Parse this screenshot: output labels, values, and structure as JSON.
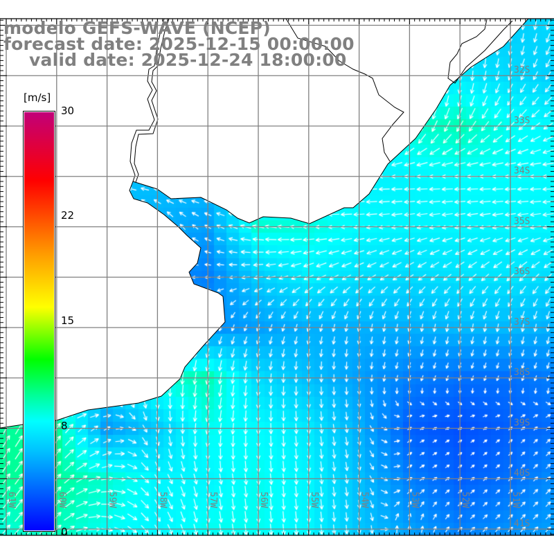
{
  "title": {
    "line1": "modelo GEFS-WAVE (NCEP)",
    "line2": "forecast date: 2025-12-15 00:00:00",
    "line3": "valid date: 2025-12-24 18:00:00"
  },
  "colorbar": {
    "unit": "[m/s]",
    "labels": [
      "30",
      "22",
      "15",
      "8",
      "0"
    ],
    "stops": [
      {
        "v": 0,
        "c": "#0000ff"
      },
      {
        "v": 3,
        "c": "#0060ff"
      },
      {
        "v": 6,
        "c": "#00c0ff"
      },
      {
        "v": 8.3,
        "c": "#00ffff"
      },
      {
        "v": 10,
        "c": "#00ff99"
      },
      {
        "v": 12.4,
        "c": "#00ff00"
      },
      {
        "v": 15.9,
        "c": "#ffff00"
      },
      {
        "v": 19.3,
        "c": "#ffa000"
      },
      {
        "v": 21.1,
        "c": "#ff6600"
      },
      {
        "v": 24.7,
        "c": "#ff0000"
      },
      {
        "v": 30,
        "c": "#c0007a"
      }
    ]
  },
  "axes": {
    "lat_labels": [
      "32S",
      "33S",
      "34S",
      "35S",
      "36S",
      "37S",
      "38S",
      "39S",
      "40S",
      "41S"
    ],
    "lon_labels": [
      "61W",
      "60W",
      "59W",
      "58W",
      "57W",
      "56W",
      "55W",
      "54W",
      "53W",
      "52W",
      "51W"
    ]
  },
  "colors": {
    "land": "#ffffff",
    "grid": "#808080",
    "coast": "#000000",
    "arrow": "#ffffff"
  },
  "wind_field": {
    "units": "m/s",
    "lons": [
      -61,
      -60,
      -59,
      -58,
      -57,
      -56,
      -55,
      -54,
      -53,
      -52,
      -51,
      -50
    ],
    "lats": [
      -31,
      -32,
      -33,
      -34,
      -35,
      -36,
      -37,
      -38,
      -39,
      -40,
      -41
    ],
    "speed": [
      [
        6,
        6,
        6,
        6,
        6,
        6,
        6,
        6,
        6,
        6.5,
        6.5,
        7
      ],
      [
        6,
        6,
        6,
        6,
        6,
        6,
        6,
        6,
        7,
        7.5,
        7,
        6.5
      ],
      [
        6,
        6,
        6,
        6,
        6,
        6,
        6,
        7,
        9,
        9.5,
        8.5,
        8
      ],
      [
        6,
        6,
        6,
        6,
        6,
        7,
        7.5,
        7.8,
        8,
        8.3,
        8.3,
        8.2
      ],
      [
        6,
        6,
        6,
        5.5,
        5,
        9,
        8.8,
        8.2,
        8,
        8,
        8,
        8
      ],
      [
        6,
        6,
        5,
        4.5,
        4,
        6.5,
        7.8,
        7.2,
        7,
        7.3,
        7.4,
        7
      ],
      [
        6,
        6,
        6,
        5,
        4.5,
        5,
        5.5,
        5.5,
        5.5,
        5.8,
        5.8,
        5.5
      ],
      [
        8,
        8,
        7,
        9,
        9.5,
        7,
        6,
        5,
        4,
        3.5,
        3.5,
        4
      ],
      [
        10,
        10,
        5,
        6.5,
        8.5,
        8.2,
        7.5,
        5.5,
        3,
        2.5,
        3,
        3.5
      ],
      [
        10,
        10,
        9,
        8,
        8,
        8.5,
        8,
        6,
        4,
        3,
        3.5,
        4.5
      ],
      [
        9,
        9.5,
        8.5,
        8,
        8.5,
        8.5,
        8,
        6.2,
        5,
        4,
        4.5,
        5
      ]
    ],
    "direction_to_deg": [
      [
        180,
        180,
        180,
        180,
        180,
        180,
        180,
        180,
        180,
        180,
        180,
        200
      ],
      [
        180,
        180,
        180,
        180,
        180,
        180,
        180,
        180,
        180,
        180,
        200,
        215
      ],
      [
        200,
        200,
        200,
        200,
        200,
        200,
        200,
        210,
        200,
        210,
        225,
        240
      ],
      [
        270,
        270,
        270,
        270,
        270,
        270,
        270,
        270,
        270,
        270,
        270,
        270
      ],
      [
        330,
        330,
        330,
        330,
        300,
        280,
        270,
        265,
        260,
        260,
        260,
        260
      ],
      [
        270,
        270,
        270,
        270,
        270,
        260,
        245,
        240,
        235,
        230,
        225,
        225
      ],
      [
        200,
        200,
        200,
        200,
        200,
        200,
        195,
        190,
        190,
        190,
        190,
        190
      ],
      [
        180,
        180,
        180,
        180,
        190,
        185,
        180,
        180,
        200,
        200,
        200,
        200
      ],
      [
        30,
        35,
        60,
        170,
        190,
        180,
        175,
        170,
        60,
        60,
        50,
        45
      ],
      [
        35,
        40,
        80,
        150,
        170,
        175,
        175,
        170,
        60,
        50,
        45,
        45
      ],
      [
        40,
        45,
        100,
        150,
        170,
        175,
        175,
        175,
        0,
        45,
        45,
        45
      ]
    ]
  }
}
